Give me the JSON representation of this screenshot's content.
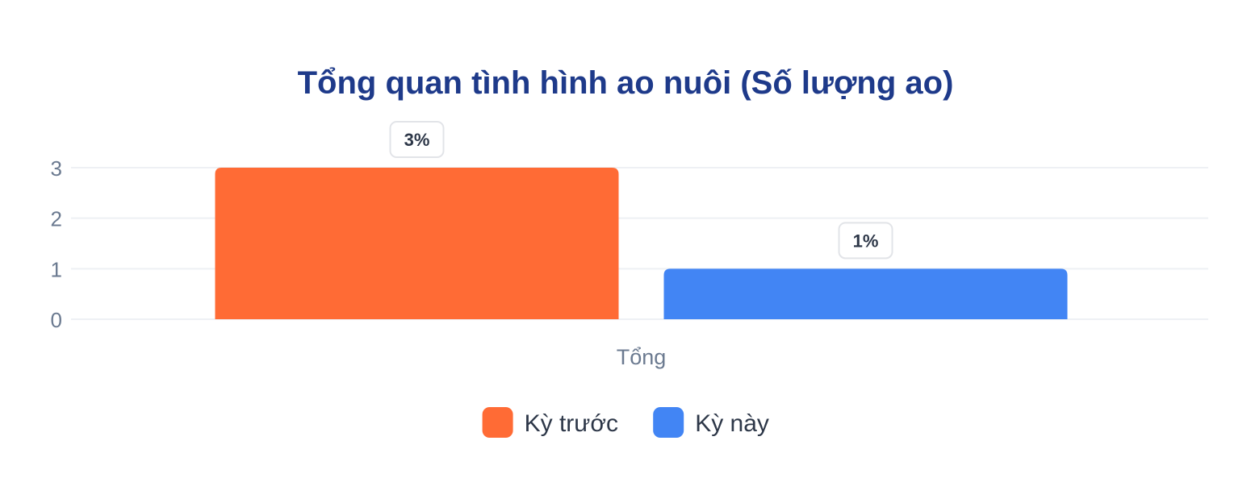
{
  "colors": {
    "title": "#1e3a8a",
    "axis_text": "#6b7a90",
    "grid": "#eef0f4",
    "legend_text": "#2d3748",
    "label_border": "#e2e4e8",
    "label_text": "#2d3748"
  },
  "chart_data": {
    "type": "bar",
    "title": "Tổng quan tình hình ao nuôi (Số lượng ao)",
    "xlabel": "",
    "ylabel": "",
    "categories": [
      "Tổng"
    ],
    "ylim": [
      0,
      3
    ],
    "yticks": [
      "0",
      "1",
      "2",
      "3"
    ],
    "grid": true,
    "legend_position": "bottom",
    "series": [
      {
        "name": "Kỳ trước",
        "color": "#ff6b35",
        "values": [
          3
        ],
        "labels": [
          "3%"
        ]
      },
      {
        "name": "Kỳ này",
        "color": "#4285f4",
        "values": [
          1
        ],
        "labels": [
          "1%"
        ]
      }
    ]
  }
}
